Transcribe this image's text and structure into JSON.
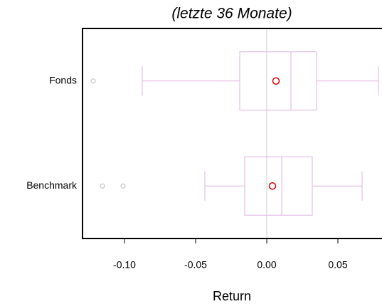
{
  "chart_data": {
    "type": "boxplot",
    "title": "(letzte 36 Monate)",
    "x_label": "Return",
    "categories": [
      "Fonds",
      "Benchmark"
    ],
    "boxes": [
      {
        "min": -0.0875,
        "q1": -0.019,
        "median": 0.017,
        "q3": 0.035,
        "max": 0.0785,
        "mean": 0.0065,
        "outliers": [
          -0.122
        ]
      },
      {
        "min": -0.0435,
        "q1": -0.0155,
        "median": 0.0105,
        "q3": 0.032,
        "max": 0.067,
        "mean": 0.004,
        "outliers": [
          -0.1155,
          -0.101
        ]
      }
    ],
    "box_color": "#ddb3dd",
    "mean_color": "#dd0000",
    "outlier_color": "#bbbbbb",
    "reference_line": 0,
    "reference_color": "#cccccc",
    "xlim": [
      -0.1295,
      0.081
    ],
    "xticks": [
      {
        "value": -0.1,
        "label": "-0.10"
      },
      {
        "value": -0.05,
        "label": "-0.05"
      },
      {
        "value": 0,
        "label": "0.00"
      },
      {
        "value": 0.05,
        "label": "0.05"
      }
    ]
  }
}
